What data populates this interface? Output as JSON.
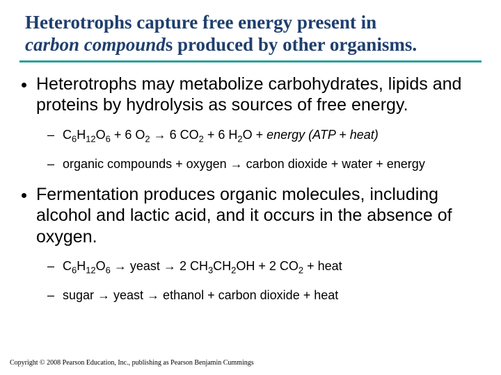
{
  "colors": {
    "title_color": "#1f3f6e",
    "rule_color": "#2aa098",
    "body_color": "#000000",
    "background": "#ffffff"
  },
  "typography": {
    "title_font": "Times New Roman",
    "title_size_pt": 27,
    "title_weight": "bold",
    "body_font": "Arial",
    "level1_size_pt": 25,
    "level2_size_pt": 18,
    "copyright_size_pt": 10,
    "copyright_font": "Times New Roman"
  },
  "title": {
    "line1": "Heterotrophs capture free energy present in",
    "line2_ital": "carbon compound",
    "line2_rest": "s produced by other organisms."
  },
  "bullets": [
    {
      "text": "Heterotrophs may metabolize carbohydrates, lipids and proteins by hydrolysis as sources of free energy.",
      "subs": [
        {
          "formula_parts": {
            "p1": "C",
            "s1": "6",
            "p2": "H",
            "s2": "12",
            "p3": "O",
            "s3": "6",
            "p4": " + 6 O",
            "s4": "2",
            "arrow": " → ",
            "p5": "6 CO",
            "s5": "2",
            "p6": " + 6 H",
            "s6": "2",
            "p7": "O + ",
            "ital": "energy (ATP + heat)"
          }
        },
        {
          "plain": "organic compounds + oxygen → carbon dioxide + water + energy"
        }
      ]
    },
    {
      "text": "Fermentation produces organic molecules, including alcohol and lactic acid, and it occurs in the absence of oxygen.",
      "subs": [
        {
          "formula_parts": {
            "p1": "C",
            "s1": "6",
            "p2": "H",
            "s2": "12",
            "p3": "O",
            "s3": "6",
            "arrow": " → ",
            "yeast": "yeast",
            "arrow2": " → ",
            "p5": "2 CH",
            "s5": "3",
            "p6": "CH",
            "s6": "2",
            "p7": "OH + 2 CO",
            "s7": "2",
            "p8": " + heat"
          }
        },
        {
          "plain": "sugar → yeast → ethanol + carbon dioxide + heat"
        }
      ]
    }
  ],
  "copyright": "Copyright © 2008 Pearson Education, Inc., publishing as Pearson Benjamin Cummings"
}
